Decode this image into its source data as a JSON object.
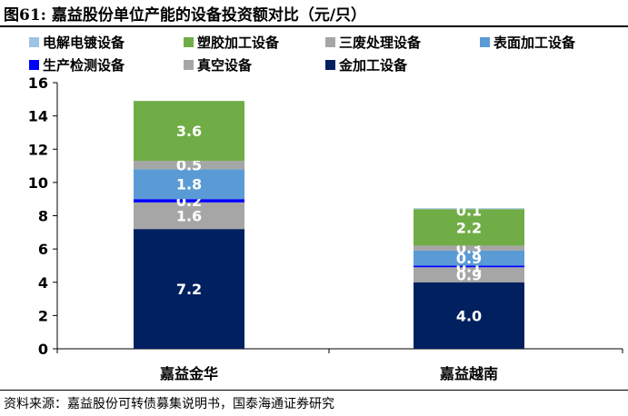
{
  "figure": {
    "title": "图61:  嘉益股份单位产能的设备投资额对比（元/只）",
    "source": "资料来源：嘉益股份可转债募集说明书，国泰海通证券研究"
  },
  "chart_data": {
    "type": "bar",
    "stacked": true,
    "categories": [
      "嘉益金华",
      "嘉益越南"
    ],
    "ylim": [
      0,
      16
    ],
    "yticks": [
      0,
      2,
      4,
      6,
      8,
      10,
      12,
      14,
      16
    ],
    "xlabel": "",
    "ylabel": "",
    "grid": false,
    "legend_position": "top",
    "stack_order": [
      "金加工设备",
      "真空设备",
      "生产检测设备",
      "表面加工设备",
      "三废处理设备",
      "塑胶加工设备",
      "电解电镀设备"
    ],
    "legend_order": [
      "电解电镀设备",
      "塑胶加工设备",
      "三废处理设备",
      "表面加工设备",
      "生产检测设备",
      "真空设备",
      "金加工设备"
    ],
    "series": [
      {
        "name": "电解电镀设备",
        "color": "#9DC3E6",
        "values": [
          0.0,
          0.05
        ],
        "labels": [
          "",
          ""
        ]
      },
      {
        "name": "塑胶加工设备",
        "color": "#70AD47",
        "values": [
          3.6,
          2.2
        ],
        "labels": [
          "3.6",
          "2.2"
        ]
      },
      {
        "name": "三废处理设备",
        "color": "#A6A6A6",
        "values": [
          0.5,
          0.3
        ],
        "labels": [
          "0.5",
          "0.3"
        ]
      },
      {
        "name": "表面加工设备",
        "color": "#5B9BD5",
        "values": [
          1.8,
          0.9
        ],
        "labels": [
          "1.8",
          "0.9"
        ]
      },
      {
        "name": "生产检测设备",
        "color": "#0000FF",
        "values": [
          0.2,
          0.1
        ],
        "labels": [
          "0.2",
          "0.1"
        ]
      },
      {
        "name": "真空设备",
        "color": "#A6A6A6",
        "values": [
          1.6,
          0.9
        ],
        "labels": [
          "1.6",
          "0.9"
        ]
      },
      {
        "name": "金加工设备",
        "color": "#002060",
        "values": [
          7.2,
          4.0
        ],
        "labels": [
          "7.2",
          "4.0"
        ]
      }
    ],
    "extra_label": {
      "category_index": 1,
      "text": "0.1"
    }
  }
}
